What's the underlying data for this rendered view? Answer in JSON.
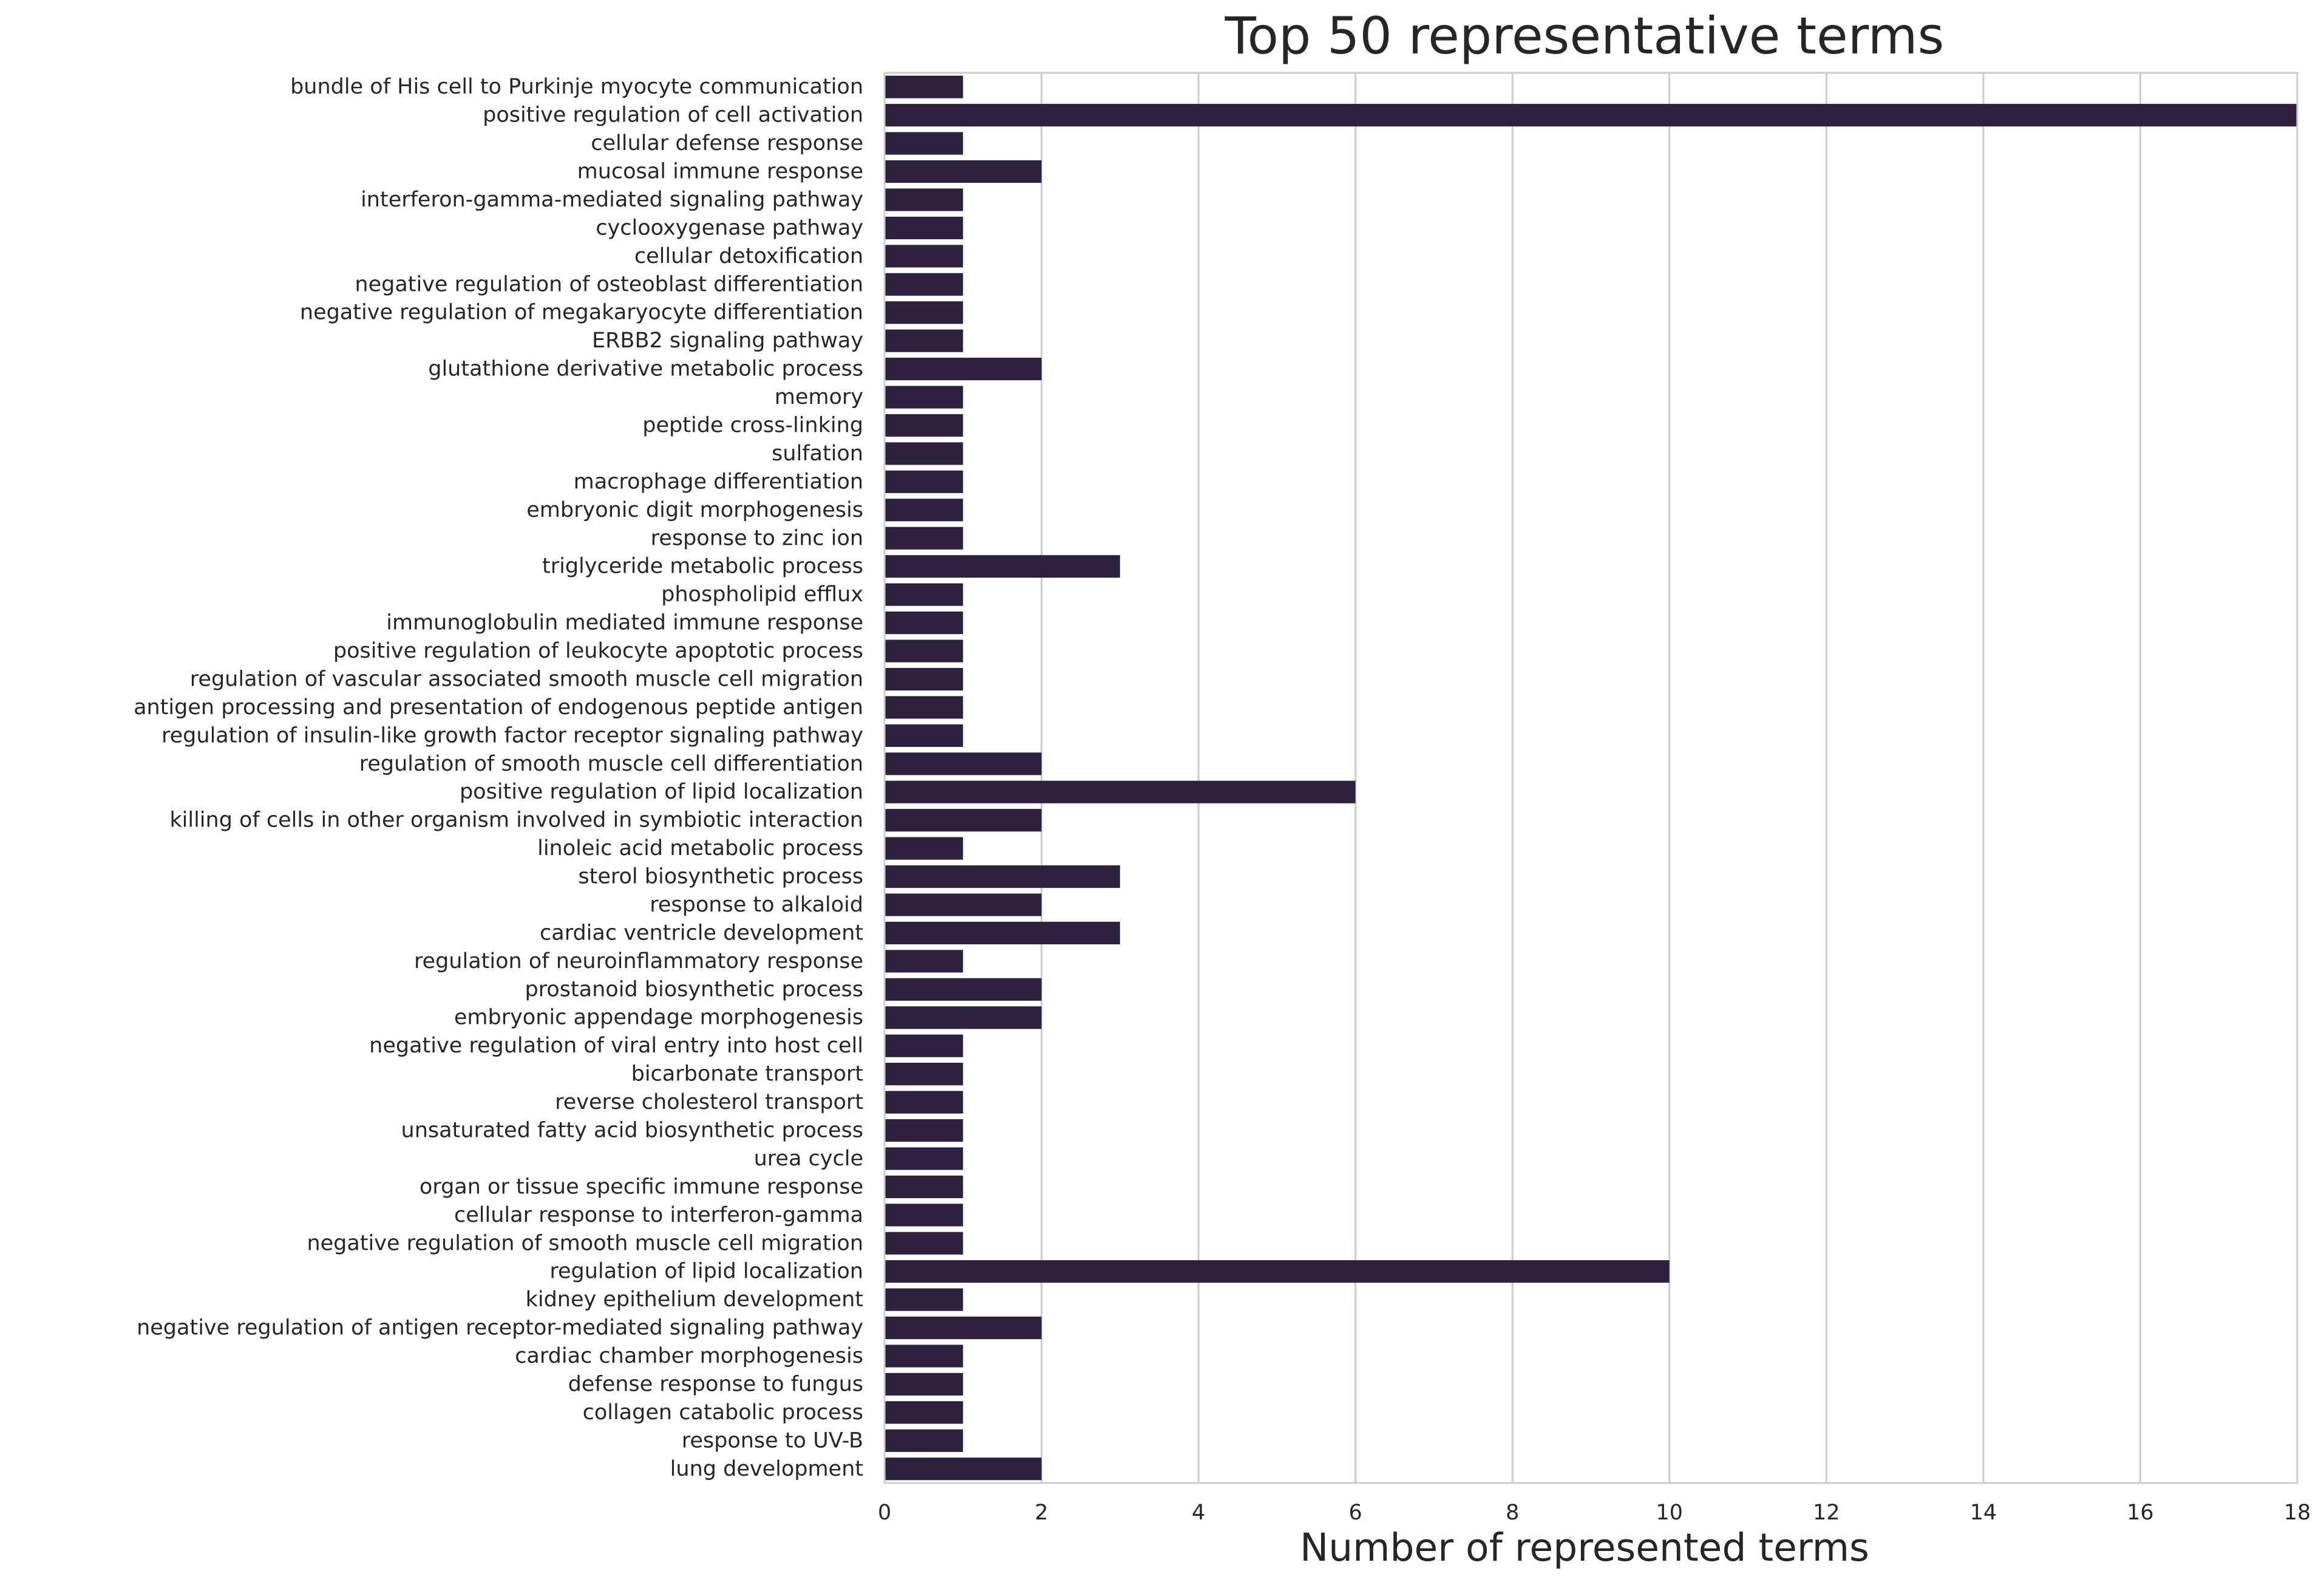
{
  "chart_data": {
    "type": "bar",
    "orientation": "horizontal",
    "title": "Top 50 representative terms",
    "xlabel": "Number of represented terms",
    "ylabel": "",
    "xlim": [
      0,
      18
    ],
    "xticks": [
      "0",
      "2",
      "4",
      "6",
      "8",
      "10",
      "12",
      "14",
      "16",
      "18"
    ],
    "grid": "vertical",
    "bar_color": "#2d213f",
    "categories": [
      "bundle of His cell to Purkinje myocyte communication",
      "positive regulation of cell activation",
      "cellular defense response",
      "mucosal immune response",
      "interferon-gamma-mediated signaling pathway",
      "cyclooxygenase pathway",
      "cellular detoxification",
      "negative regulation of osteoblast differentiation",
      "negative regulation of megakaryocyte differentiation",
      "ERBB2 signaling pathway",
      "glutathione derivative metabolic process",
      "memory",
      "peptide cross-linking",
      "sulfation",
      "macrophage differentiation",
      "embryonic digit morphogenesis",
      "response to zinc ion",
      "triglyceride metabolic process",
      "phospholipid efflux",
      "immunoglobulin mediated immune response",
      "positive regulation of leukocyte apoptotic process",
      "regulation of vascular associated smooth muscle cell migration",
      "antigen processing and presentation of endogenous peptide antigen",
      "regulation of insulin-like growth factor receptor signaling pathway",
      "regulation of smooth muscle cell differentiation",
      "positive regulation of lipid localization",
      "killing of cells in other organism involved in symbiotic interaction",
      "linoleic acid metabolic process",
      "sterol biosynthetic process",
      "response to alkaloid",
      "cardiac ventricle development",
      "regulation of neuroinflammatory response",
      "prostanoid biosynthetic process",
      "embryonic appendage morphogenesis",
      "negative regulation of viral entry into host cell",
      "bicarbonate transport",
      "reverse cholesterol transport",
      "unsaturated fatty acid biosynthetic process",
      "urea cycle",
      "organ or tissue specific immune response",
      "cellular response to interferon-gamma",
      "negative regulation of smooth muscle cell migration",
      "regulation of lipid localization",
      "kidney epithelium development",
      "negative regulation of antigen receptor-mediated signaling pathway",
      "cardiac chamber morphogenesis",
      "defense response to fungus",
      "collagen catabolic process",
      "response to UV-B",
      "lung development"
    ],
    "values": [
      1,
      18,
      1,
      2,
      1,
      1,
      1,
      1,
      1,
      1,
      2,
      1,
      1,
      1,
      1,
      1,
      1,
      3,
      1,
      1,
      1,
      1,
      1,
      1,
      2,
      6,
      2,
      1,
      3,
      2,
      3,
      1,
      2,
      2,
      1,
      1,
      1,
      1,
      1,
      1,
      1,
      1,
      10,
      1,
      2,
      1,
      1,
      1,
      1,
      2
    ]
  }
}
